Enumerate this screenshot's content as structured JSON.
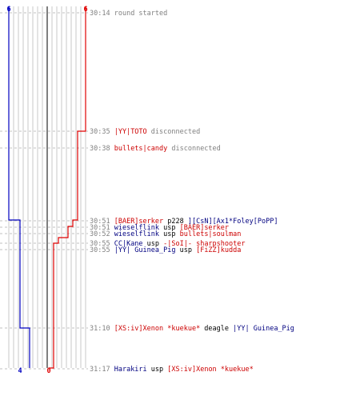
{
  "chart_data": {
    "type": "line",
    "team_colors": {
      "blue": "#0000c0",
      "red": "#e00000",
      "text_blue": "#000080",
      "text_red": "#cc0000",
      "text_gray": "#808080"
    },
    "start_counts": {
      "blue": "6",
      "red": "6"
    },
    "end_counts": {
      "blue": "4",
      "red": "0"
    },
    "series": [
      {
        "team": "blue",
        "steps": [
          [
            0,
            6
          ],
          [
            275,
            5
          ],
          [
            410,
            4
          ]
        ]
      },
      {
        "team": "red",
        "steps": [
          [
            0,
            6
          ],
          [
            164,
            5
          ],
          [
            275,
            4
          ],
          [
            283,
            3
          ],
          [
            297,
            2
          ],
          [
            304,
            1
          ],
          [
            460,
            0
          ]
        ]
      }
    ],
    "events": [
      {
        "time": "30:14",
        "parts": [
          {
            "text": "round started",
            "c": "gray"
          }
        ]
      },
      {
        "time": "30:35",
        "parts": [
          {
            "text": "|YY|TOTO",
            "c": "red"
          },
          {
            "text": " disconnected",
            "c": "gray"
          }
        ]
      },
      {
        "time": "30:38",
        "parts": [
          {
            "text": "bullets|candy",
            "c": "red"
          },
          {
            "text": " disconnected",
            "c": "gray"
          }
        ]
      },
      {
        "time": "30:51",
        "parts": [
          {
            "text": "[BAER]serker",
            "c": "red"
          },
          {
            "text": " p228 ",
            "c": "blk"
          },
          {
            "text": "][CsN][Ax1*Foley[PoPP]",
            "c": "blue"
          }
        ]
      },
      {
        "time": "30:51",
        "parts": [
          {
            "text": "wieselflink",
            "c": "blue"
          },
          {
            "text": " usp ",
            "c": "blk"
          },
          {
            "text": "[BAER]serker",
            "c": "red"
          }
        ]
      },
      {
        "time": "30:52",
        "parts": [
          {
            "text": "wieselflink",
            "c": "blue"
          },
          {
            "text": " usp ",
            "c": "blk"
          },
          {
            "text": "bullets|soulman",
            "c": "red"
          }
        ]
      },
      {
        "time": "30:55",
        "parts": [
          {
            "text": "CC|Kane",
            "c": "blue"
          },
          {
            "text": " usp ",
            "c": "blk"
          },
          {
            "text": "-|SoI|- sharpshooter",
            "c": "red"
          }
        ]
      },
      {
        "time": "30:55",
        "parts": [
          {
            "text": "|YY| Guinea_Pig",
            "c": "blue"
          },
          {
            "text": " usp ",
            "c": "blk"
          },
          {
            "text": "[FiZZ]kudda",
            "c": "red"
          }
        ]
      },
      {
        "time": "31:10",
        "parts": [
          {
            "text": "[XS:iv]Xenon *kuekue*",
            "c": "red"
          },
          {
            "text": " deagle ",
            "c": "blk"
          },
          {
            "text": "|YY| Guinea_Pig",
            "c": "blue"
          }
        ]
      },
      {
        "time": "31:17",
        "parts": [
          {
            "text": "Harakiri",
            "c": "blue"
          },
          {
            "text": " usp ",
            "c": "blk"
          },
          {
            "text": "[XS:iv]Xenon *kuekue*",
            "c": "red"
          }
        ]
      }
    ]
  }
}
